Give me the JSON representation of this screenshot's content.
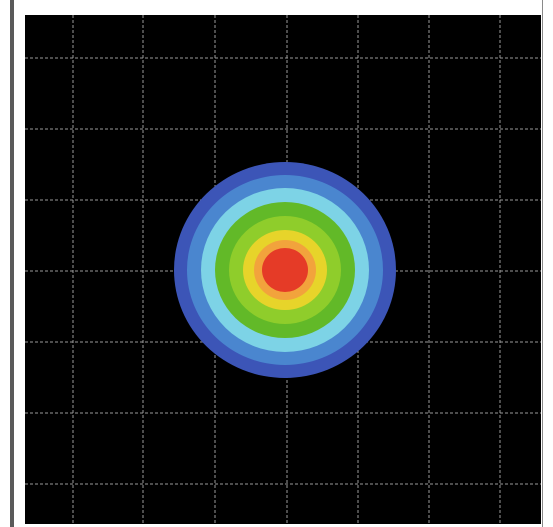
{
  "chart_data": {
    "type": "heatmap",
    "title": "",
    "xlabel": "",
    "ylabel": "",
    "grid": true,
    "background_color": "#000000",
    "grid_color": "#9a9a9a",
    "x_grid_lines": 8,
    "y_grid_lines": 7,
    "center": [
      0.5,
      0.5
    ],
    "contour_levels": [
      {
        "level": 1,
        "color": "#3c55b7"
      },
      {
        "level": 2,
        "color": "#4a86cf"
      },
      {
        "level": 3,
        "color": "#7dd3e6"
      },
      {
        "level": 4,
        "color": "#62b928"
      },
      {
        "level": 5,
        "color": "#8fcd2b"
      },
      {
        "level": 6,
        "color": "#e7d42a"
      },
      {
        "level": 7,
        "color": "#f2a33c"
      },
      {
        "level": 8,
        "color": "#e53b27"
      }
    ]
  }
}
